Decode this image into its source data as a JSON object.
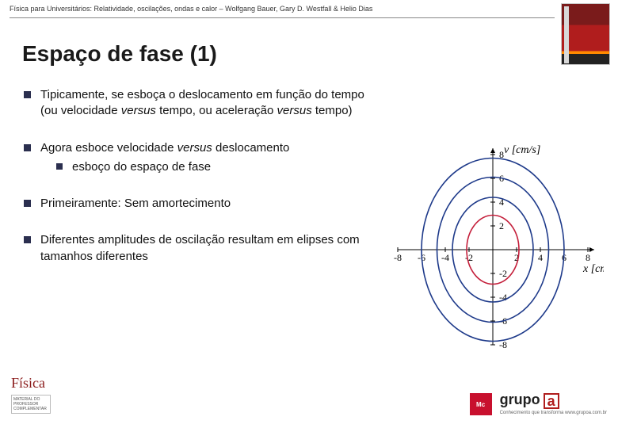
{
  "header": {
    "text": "Física para Universitários: Relatividade, oscilações, ondas e calor – Wolfgang Bauer, Gary D. Westfall & Helio Dias"
  },
  "title": "Espaço de fase (1)",
  "bullets": [
    {
      "text_parts": [
        "Tipicamente, se esboça o deslocamento em função do tempo (ou velocidade ",
        "versus",
        "  tempo, ou aceleração ",
        "versus",
        "  tempo)"
      ],
      "italic_idx": [
        1,
        3
      ]
    },
    {
      "text_parts": [
        "Agora esboce velocidade ",
        "versus",
        "  deslocamento"
      ],
      "italic_idx": [
        1
      ],
      "sub": "esboço do espaço de fase"
    },
    {
      "text_parts": [
        "Primeiramente: Sem amortecimento"
      ],
      "italic_idx": []
    },
    {
      "text_parts": [
        "Diferentes amplitudes  de oscilação resultam em elipses com tamanhos diferentes"
      ],
      "italic_idx": []
    }
  ],
  "chart": {
    "type": "scatter-ellipses",
    "x_label": "x [cm]",
    "y_label": "v [cm/s]",
    "xlim": [
      -8,
      8
    ],
    "ylim": [
      -8,
      8
    ],
    "x_ticks": [
      -8,
      -6,
      -4,
      -2,
      2,
      4,
      6,
      8
    ],
    "y_ticks": [
      -8,
      -6,
      -4,
      -2,
      2,
      4,
      6,
      8
    ],
    "axis_color": "#000000",
    "grid": false,
    "label_fontsize": 14,
    "tick_fontsize": 12,
    "background_color": "#ffffff",
    "ellipses": [
      {
        "rx": 2.2,
        "ry": 2.9,
        "stroke": "#c41e3a",
        "stroke_width": 1.6
      },
      {
        "rx": 3.4,
        "ry": 4.4,
        "stroke": "#1e3a8a",
        "stroke_width": 1.6
      },
      {
        "rx": 4.7,
        "ry": 6.1,
        "stroke": "#1e3a8a",
        "stroke_width": 1.6
      },
      {
        "rx": 6.0,
        "ry": 7.7,
        "stroke": "#1e3a8a",
        "stroke_width": 1.6
      }
    ]
  },
  "footer": {
    "left_brand": "Física",
    "left_mini": "MATERIAL DO PROFESSOR COMPLEMENTAR",
    "mcgraw": "Mc",
    "grupo": "grupo",
    "grupo_a": "a",
    "grupo_sub": "Conhecimento que transforma  www.grupoa.com.br"
  }
}
